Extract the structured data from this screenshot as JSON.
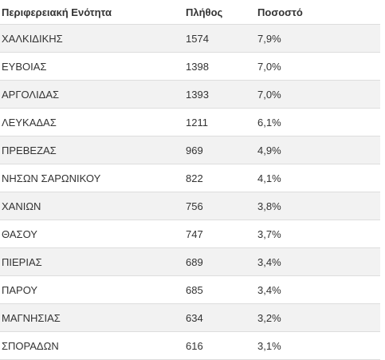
{
  "table": {
    "headers": {
      "region": "Περιφερειακή Ενότητα",
      "count": "Πλήθος",
      "percent": "Ποσοστό"
    },
    "rows": [
      {
        "region": "ΧΑΛΚΙΔΙΚΗΣ",
        "count": "1574",
        "percent": "7,9%"
      },
      {
        "region": "ΕΥΒΟΙΑΣ",
        "count": "1398",
        "percent": "7,0%"
      },
      {
        "region": "ΑΡΓΟΛΙΔΑΣ",
        "count": "1393",
        "percent": "7,0%"
      },
      {
        "region": "ΛΕΥΚΑΔΑΣ",
        "count": "1211",
        "percent": "6,1%"
      },
      {
        "region": "ΠΡΕΒΕΖΑΣ",
        "count": "969",
        "percent": "4,9%"
      },
      {
        "region": "ΝΗΣΩΝ ΣΑΡΩΝΙΚΟΥ",
        "count": "822",
        "percent": "4,1%"
      },
      {
        "region": "ΧΑΝΙΩΝ",
        "count": "756",
        "percent": "3,8%"
      },
      {
        "region": "ΘΑΣΟΥ",
        "count": "747",
        "percent": "3,7%"
      },
      {
        "region": "ΠΙΕΡΙΑΣ",
        "count": "689",
        "percent": "3,4%"
      },
      {
        "region": "ΠΑΡΟΥ",
        "count": "685",
        "percent": "3,4%"
      },
      {
        "region": "ΜΑΓΝΗΣΙΑΣ",
        "count": "634",
        "percent": "3,2%"
      },
      {
        "region": "ΣΠΟΡΑΔΩΝ",
        "count": "616",
        "percent": "3,1%"
      }
    ]
  }
}
